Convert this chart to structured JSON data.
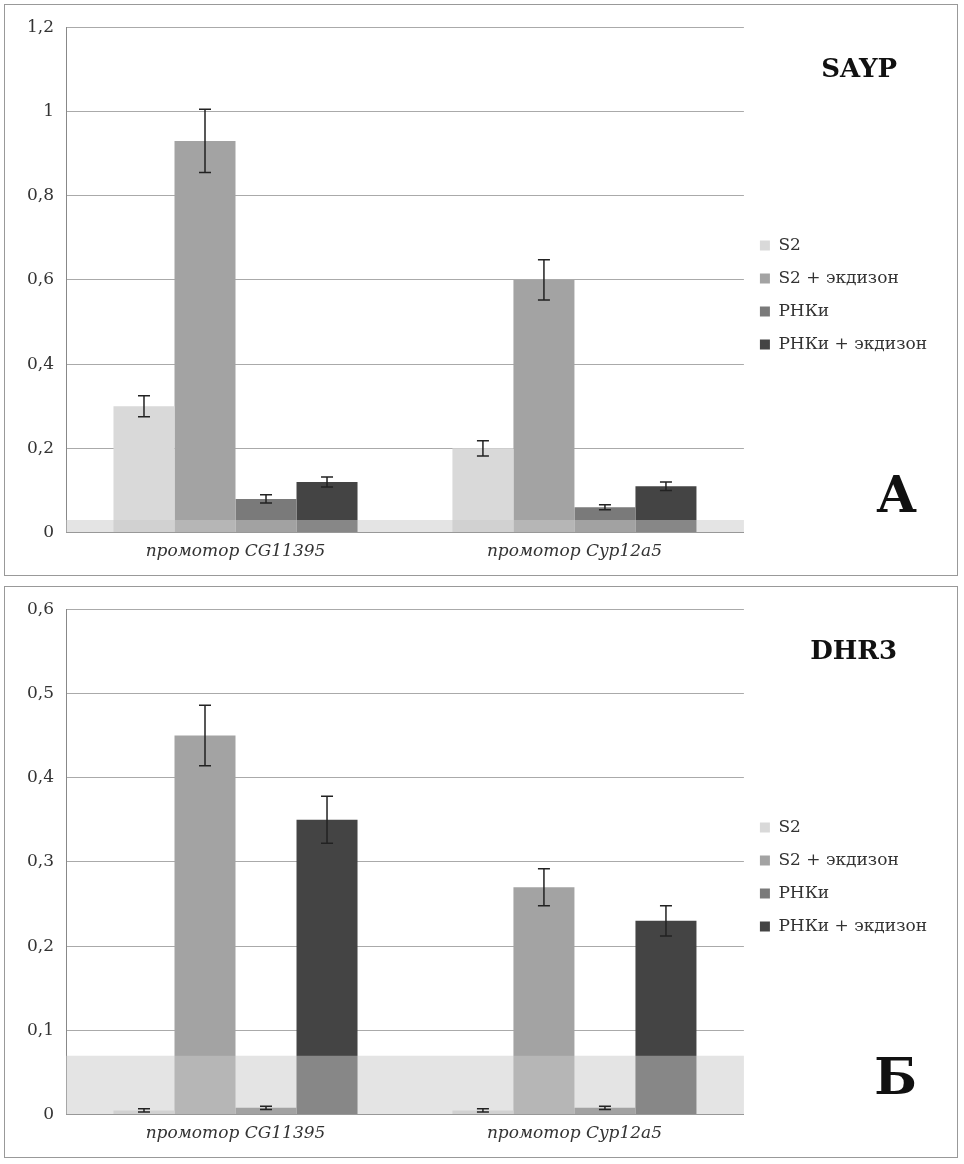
{
  "chart_data": [
    {
      "type": "bar",
      "categories": [
        "промотор CG11395",
        "промотор Cyp12a5"
      ],
      "series": [
        {
          "name": "S2",
          "color": "#d9d9d9",
          "values": [
            0.3,
            0.2
          ],
          "errors": [
            0.025,
            0.018
          ]
        },
        {
          "name": "S2 + экдизон",
          "color": "#a3a3a3",
          "values": [
            0.93,
            0.6
          ],
          "errors": [
            0.075,
            0.048
          ]
        },
        {
          "name": "РНКи",
          "color": "#7a7a7a",
          "values": [
            0.08,
            0.06
          ],
          "errors": [
            0.01,
            0.006
          ]
        },
        {
          "name": "РНКи + экдизон",
          "color": "#444444",
          "values": [
            0.12,
            0.11
          ],
          "errors": [
            0.012,
            0.01
          ]
        }
      ],
      "ylim": [
        0,
        1.2
      ],
      "yticks": [
        {
          "value": 0,
          "label": "0"
        },
        {
          "value": 0.2,
          "label": "0,2"
        },
        {
          "value": 0.4,
          "label": "0,4"
        },
        {
          "value": 0.6,
          "label": "0,6"
        },
        {
          "value": 0.8,
          "label": "0,8"
        },
        {
          "value": 1,
          "label": "1"
        },
        {
          "value": 1.2,
          "label": "1,2"
        }
      ],
      "bands": [
        {
          "axis": "y",
          "from": 0,
          "to": 0.03,
          "color": "#e4e4e4"
        }
      ],
      "annotations": [
        "SAYP",
        "А"
      ],
      "grid": "y",
      "legend": "right"
    },
    {
      "type": "bar",
      "categories": [
        "промотор CG11395",
        "промотор Cyp12a5"
      ],
      "series": [
        {
          "name": "S2",
          "color": "#d9d9d9",
          "values": [
            0.005,
            0.005
          ],
          "errors": [
            0.002,
            0.002
          ]
        },
        {
          "name": "S2 + экдизон",
          "color": "#a3a3a3",
          "values": [
            0.45,
            0.27
          ],
          "errors": [
            0.036,
            0.022
          ]
        },
        {
          "name": "РНКи",
          "color": "#7a7a7a",
          "values": [
            0.008,
            0.008
          ],
          "errors": [
            0.002,
            0.002
          ]
        },
        {
          "name": "РНКи + экдизон",
          "color": "#444444",
          "values": [
            0.35,
            0.23
          ],
          "errors": [
            0.028,
            0.018
          ]
        }
      ],
      "ylim": [
        0,
        0.6
      ],
      "yticks": [
        {
          "value": 0,
          "label": "0"
        },
        {
          "value": 0.1,
          "label": "0,1"
        },
        {
          "value": 0.2,
          "label": "0,2"
        },
        {
          "value": 0.3,
          "label": "0,3"
        },
        {
          "value": 0.4,
          "label": "0,4"
        },
        {
          "value": 0.5,
          "label": "0,5"
        },
        {
          "value": 0.6,
          "label": "0,6"
        }
      ],
      "bands": [
        {
          "axis": "y",
          "from": 0,
          "to": 0.07,
          "color": "#e4e4e4"
        }
      ],
      "annotations": [
        "DHR3",
        "Б"
      ],
      "grid": "y",
      "legend": "right"
    }
  ]
}
